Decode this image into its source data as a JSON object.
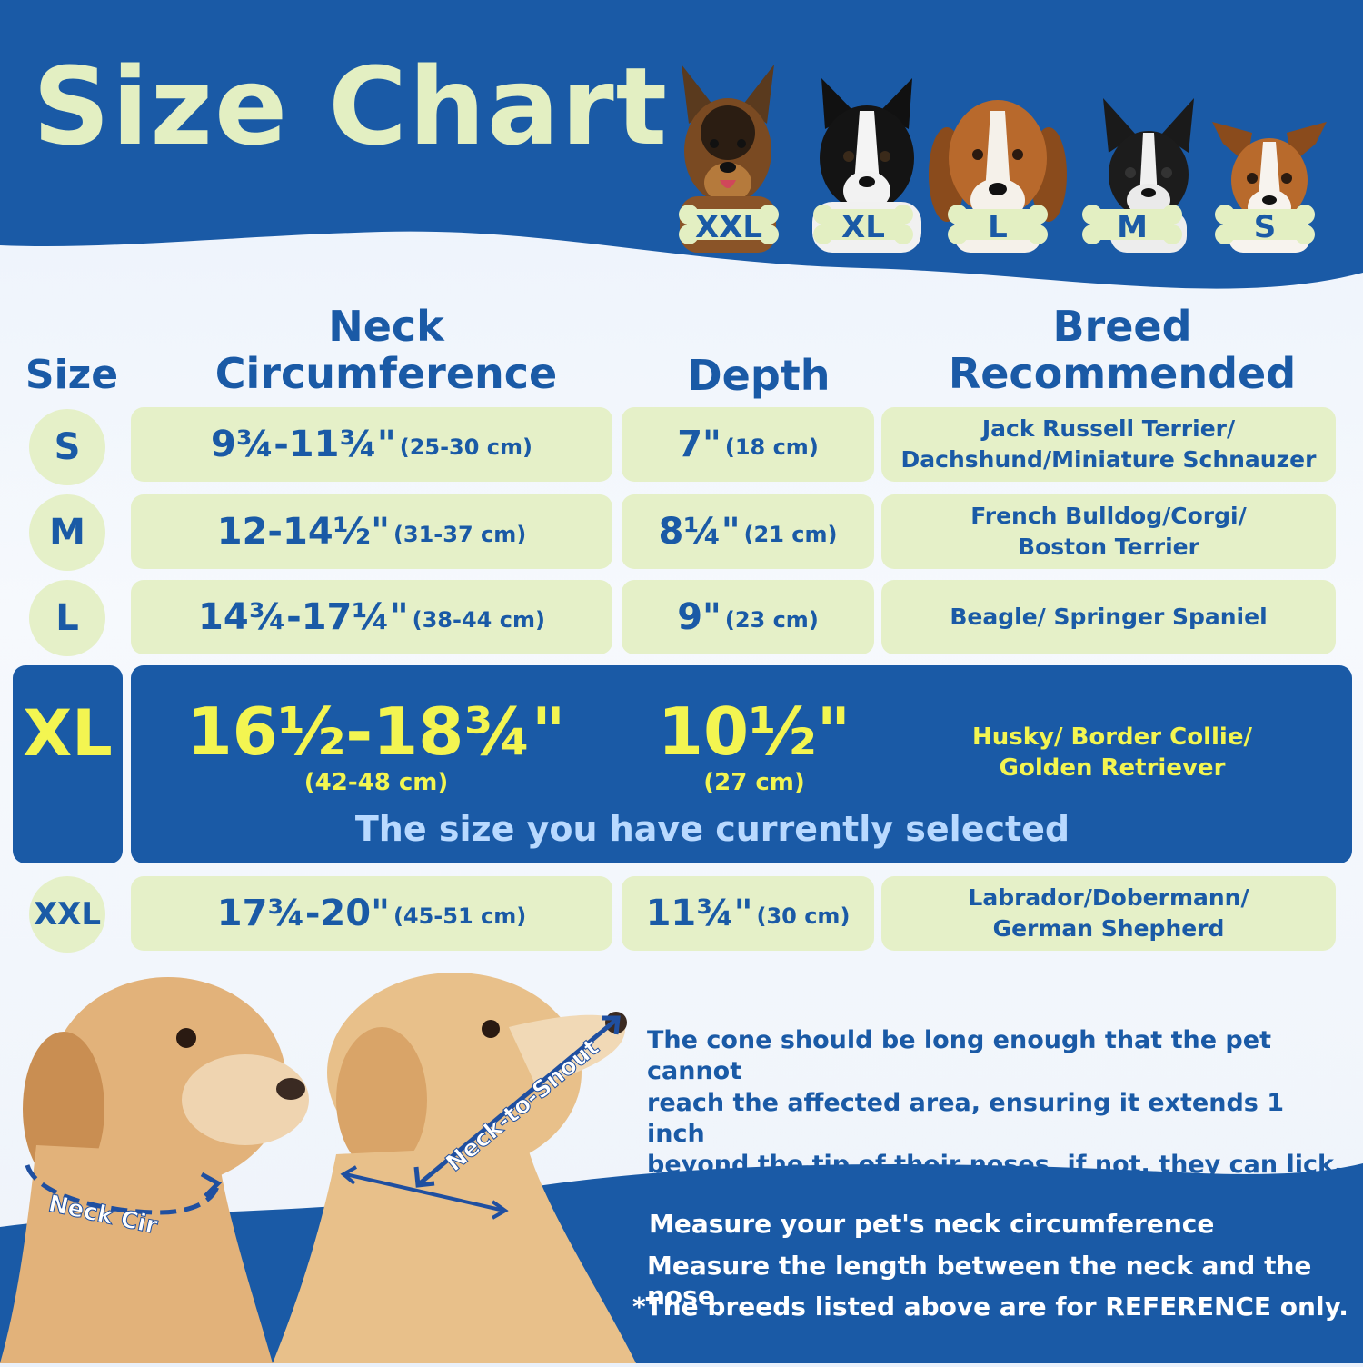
{
  "title": "Size Chart",
  "colors": {
    "brand_blue": "#1a5aa6",
    "cell_green": "#e5f0c8",
    "highlight_yellow": "#f3f551"
  },
  "dog_badges": [
    "XXL",
    "XL",
    "L",
    "M",
    "S"
  ],
  "headers": {
    "size": "Size",
    "neck_line1": "Neck",
    "neck_line2": "Circumference",
    "depth": "Depth",
    "breed_line1": "Breed",
    "breed_line2": "Recommended"
  },
  "rows": [
    {
      "size": "S",
      "neck": "9¾-11¾\"",
      "neck_cm": "(25-30 cm)",
      "depth": "7\"",
      "depth_cm": "(18 cm)",
      "breed_line1": "Jack Russell Terrier/",
      "breed_line2": "Dachshund/Miniature Schnauzer"
    },
    {
      "size": "M",
      "neck": "12-14½\"",
      "neck_cm": "(31-37 cm)",
      "depth": "8¼\"",
      "depth_cm": "(21 cm)",
      "breed_line1": "French Bulldog/Corgi/",
      "breed_line2": "Boston Terrier"
    },
    {
      "size": "L",
      "neck": "14¾-17¼\"",
      "neck_cm": "(38-44 cm)",
      "depth": "9\"",
      "depth_cm": "(23 cm)",
      "breed_line1": "Beagle/ Springer Spaniel",
      "breed_line2": ""
    },
    {
      "size": "XL",
      "neck": "16½-18¾\"",
      "neck_cm": "(42-48 cm)",
      "depth": "10½\"",
      "depth_cm": "(27 cm)",
      "breed_line1": "Husky/ Border Collie/",
      "breed_line2": "Golden Retriever",
      "selected": true
    },
    {
      "size": "XXL",
      "neck": "17¾-20\"",
      "neck_cm": "(45-51 cm)",
      "depth": "11¾\"",
      "depth_cm": "(30 cm)",
      "breed_line1": "Labrador/Dobermann/",
      "breed_line2": "German Shepherd"
    }
  ],
  "selected_note": "The size you have currently selected",
  "photo_labels": {
    "neck_cir": "Neck Cir",
    "neck_to_snout": "Neck-to-Snout"
  },
  "cone_note": [
    "The cone should be long enough that the pet cannot",
    "reach the affected area, ensuring it extends 1 inch",
    "beyond the tip of their noses, if not, they can lick."
  ],
  "instructions": [
    "Measure your pet's neck circumference",
    "Measure the length between the neck and the nose",
    "*The breeds listed above are for REFERENCE only."
  ]
}
